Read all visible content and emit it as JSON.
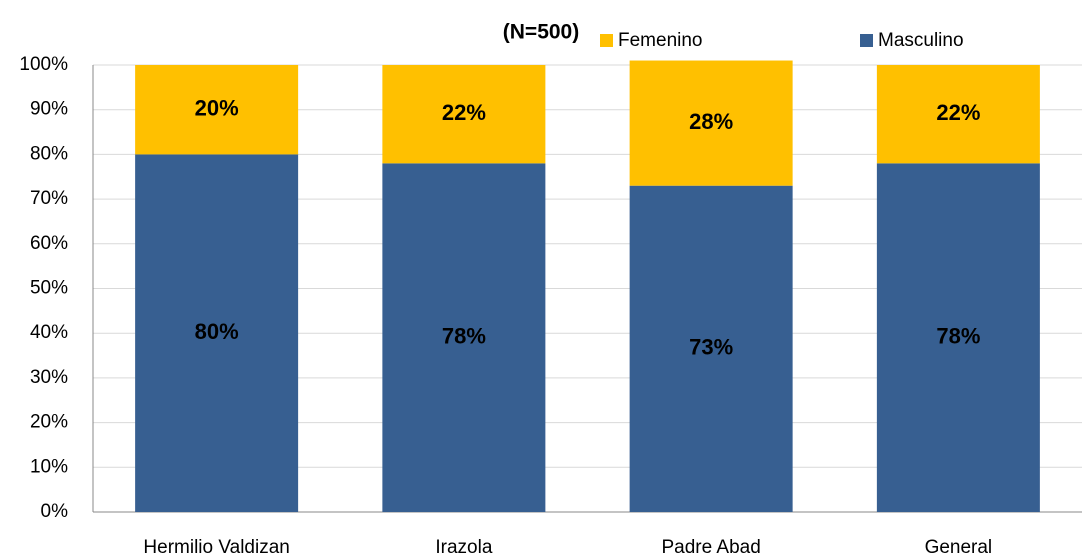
{
  "chart_data": {
    "type": "stacked_bar",
    "title": "(N=500)",
    "categories": [
      "Hermilio Valdizan",
      "Irazola",
      "Padre Abad",
      "General"
    ],
    "series": [
      {
        "name": "Masculino",
        "color": "#375f91",
        "values": [
          80,
          78,
          73,
          78
        ],
        "value_labels": [
          "80%",
          "78%",
          "73%",
          "78%"
        ]
      },
      {
        "name": "Femenino",
        "color": "#ffc000",
        "values": [
          20,
          22,
          28,
          22
        ],
        "value_labels": [
          "20%",
          "22%",
          "28%",
          "22%"
        ]
      }
    ],
    "ylim": [
      0,
      100
    ],
    "yticks": [
      {
        "value": 0,
        "label": "0%"
      },
      {
        "value": 10,
        "label": "10%"
      },
      {
        "value": 20,
        "label": "20%"
      },
      {
        "value": 30,
        "label": "30%"
      },
      {
        "value": 40,
        "label": "40%"
      },
      {
        "value": 50,
        "label": "50%"
      },
      {
        "value": 60,
        "label": "60%"
      },
      {
        "value": 70,
        "label": "70%"
      },
      {
        "value": 80,
        "label": "80%"
      },
      {
        "value": 90,
        "label": "90%"
      },
      {
        "value": 100,
        "label": "100%"
      }
    ],
    "grid": true
  }
}
